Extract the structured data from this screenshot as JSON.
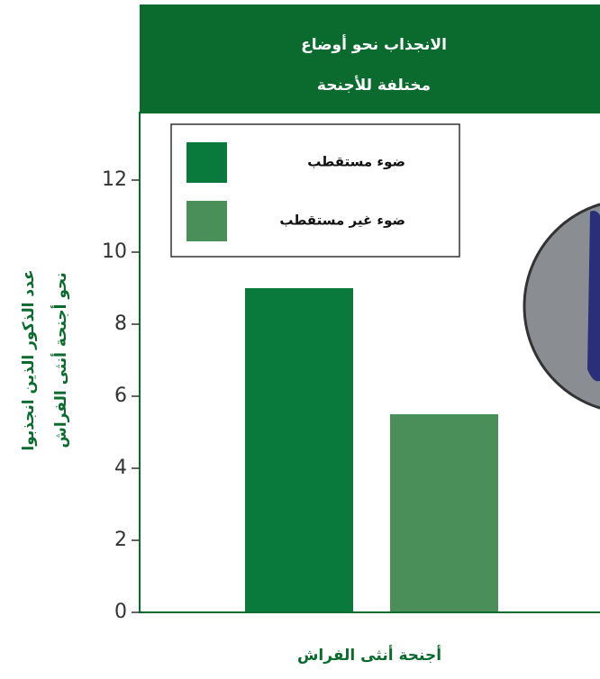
{
  "chart_data": {
    "type": "bar",
    "title": [
      "الانجذاب نحو أوضاع",
      "مختلفة للأجنحة"
    ],
    "y_label": [
      "عدد الذكور الذين انجذبوا",
      "نحو أجنحة أنثى الفراش"
    ],
    "x_label": "أجنحة أنثى الفراش",
    "categories": [
      null
    ],
    "series": [
      {
        "name": "ضوء مستقطب",
        "color": "#0a7a3c",
        "values": [
          9
        ]
      },
      {
        "name": "ضوء غير مستقطب",
        "color": "#4a8f5a",
        "values": [
          5.5
        ]
      }
    ],
    "ylim": [
      0,
      14
    ],
    "yticks": [
      0,
      2,
      4,
      6,
      8,
      10,
      12
    ]
  }
}
